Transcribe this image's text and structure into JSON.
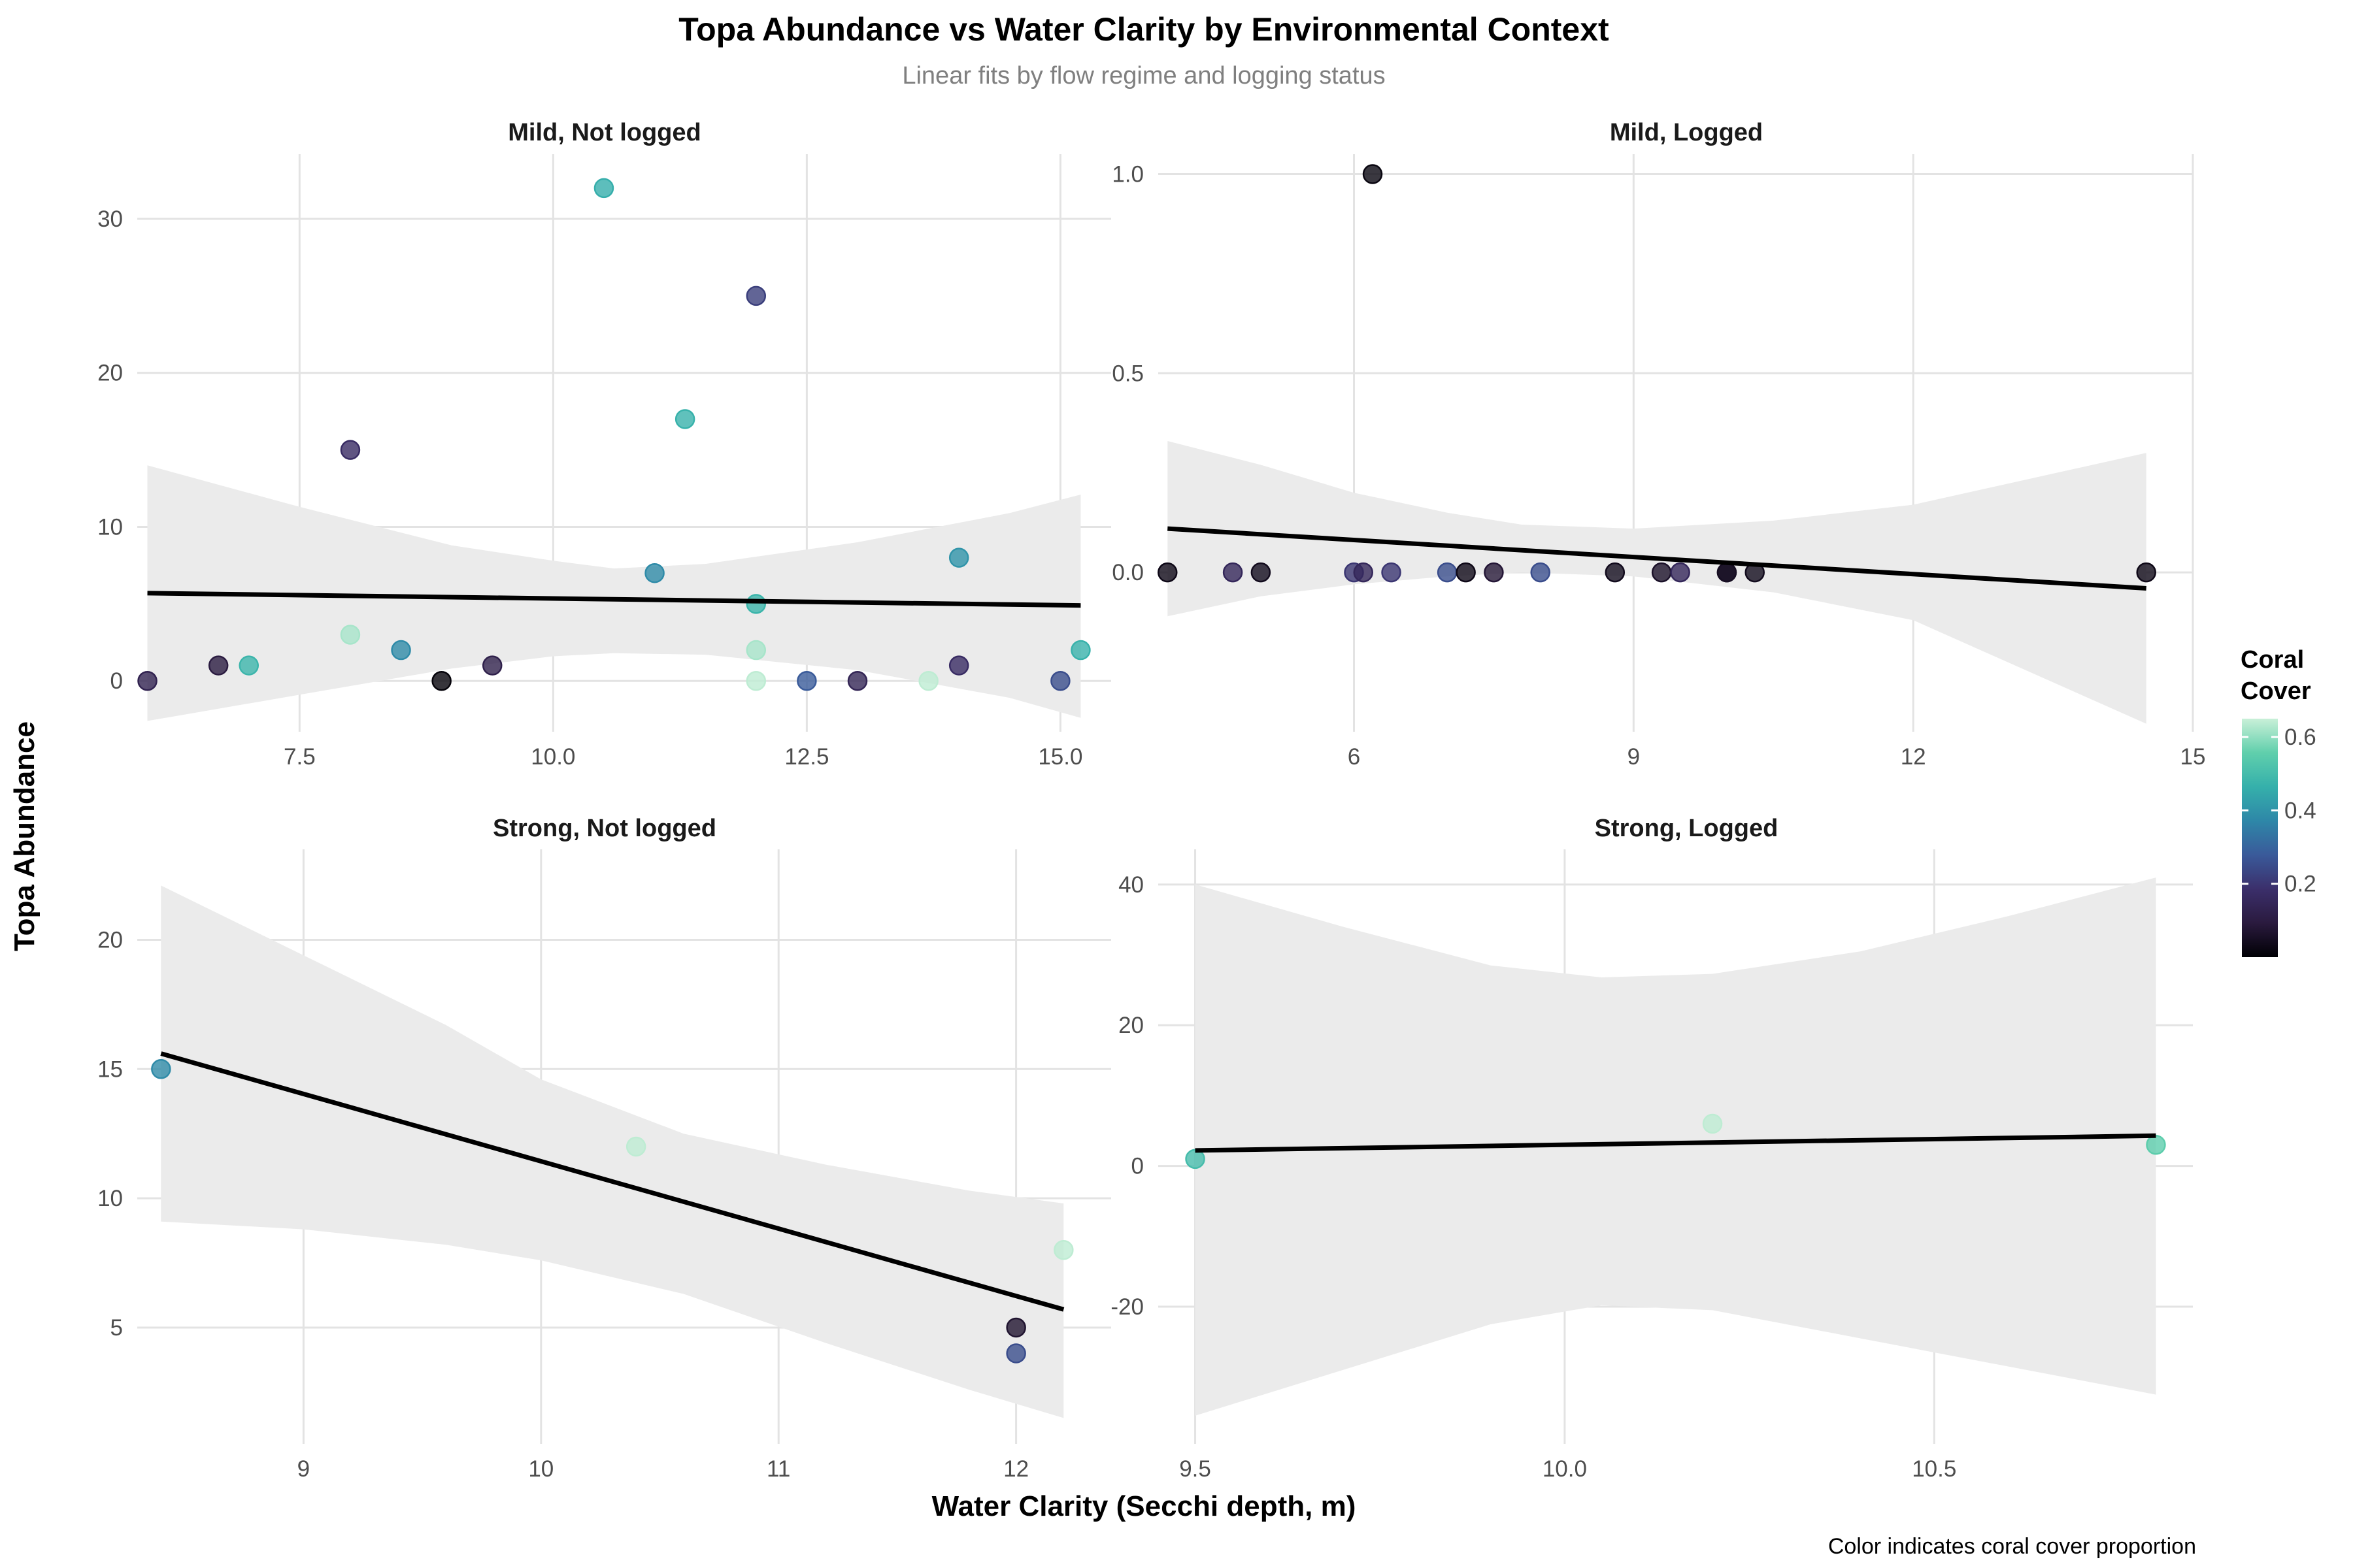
{
  "title": "Topa Abundance vs Water Clarity by Environmental Context",
  "subtitle": "Linear fits by flow regime and logging status",
  "xlabel": "Water Clarity (Secchi depth, m)",
  "ylabel": "Topa Abundance",
  "caption": "Color indicates coral cover proportion",
  "legend": {
    "title_line1": "Coral",
    "title_line2": "Cover",
    "ticks": [
      "0.2",
      "0.4",
      "0.6"
    ],
    "tick_values": [
      0.2,
      0.4,
      0.6
    ],
    "range": [
      0.0,
      0.65
    ],
    "colors": [
      "#000004",
      "#2a1a3e",
      "#3b2f6b",
      "#3a5a9a",
      "#2e87a8",
      "#35b0ab",
      "#60cfac",
      "#c9f0d8"
    ]
  },
  "chart_data": [
    {
      "type": "scatter",
      "title": "Mild, Not logged",
      "xlim": [
        5.9,
        15.5
      ],
      "ylim": [
        -3.3,
        34.2
      ],
      "xticks": [
        7.5,
        10.0,
        12.5,
        15.0
      ],
      "xtick_labels": [
        "7.5",
        "10.0",
        "12.5",
        "15.0"
      ],
      "yticks": [
        0,
        10,
        20,
        30
      ],
      "ytick_labels": [
        "0",
        "10",
        "20",
        "30"
      ],
      "points": [
        {
          "x": 6.0,
          "y": 0,
          "c": 0.13
        },
        {
          "x": 6.7,
          "y": 1,
          "c": 0.1
        },
        {
          "x": 7.0,
          "y": 1,
          "c": 0.48
        },
        {
          "x": 8.0,
          "y": 15,
          "c": 0.17
        },
        {
          "x": 8.0,
          "y": 3,
          "c": 0.62
        },
        {
          "x": 8.5,
          "y": 2,
          "c": 0.38
        },
        {
          "x": 8.9,
          "y": 0,
          "c": 0.01
        },
        {
          "x": 9.4,
          "y": 1,
          "c": 0.12
        },
        {
          "x": 10.5,
          "y": 32,
          "c": 0.46
        },
        {
          "x": 11.0,
          "y": 7,
          "c": 0.38
        },
        {
          "x": 11.3,
          "y": 17,
          "c": 0.47
        },
        {
          "x": 12.0,
          "y": 25,
          "c": 0.22
        },
        {
          "x": 12.0,
          "y": 5,
          "c": 0.48
        },
        {
          "x": 12.0,
          "y": 2,
          "c": 0.62
        },
        {
          "x": 12.0,
          "y": 0,
          "c": 0.64
        },
        {
          "x": 12.5,
          "y": 0,
          "c": 0.28
        },
        {
          "x": 13.0,
          "y": 0,
          "c": 0.14
        },
        {
          "x": 13.7,
          "y": 0,
          "c": 0.64
        },
        {
          "x": 14.0,
          "y": 8,
          "c": 0.4
        },
        {
          "x": 14.0,
          "y": 1,
          "c": 0.17
        },
        {
          "x": 15.0,
          "y": 0,
          "c": 0.25
        },
        {
          "x": 15.2,
          "y": 2,
          "c": 0.47
        }
      ],
      "fit": {
        "x": [
          6.0,
          15.2
        ],
        "y": [
          5.7,
          4.9
        ]
      },
      "band": {
        "x": [
          6.0,
          7.5,
          9.0,
          10.0,
          10.6,
          11.5,
          13.0,
          14.5,
          15.2
        ],
        "lower": [
          -2.6,
          -0.9,
          0.8,
          1.6,
          1.8,
          1.7,
          0.7,
          -1.1,
          -2.4
        ],
        "upper": [
          14.0,
          11.3,
          8.8,
          7.8,
          7.3,
          7.6,
          9.0,
          10.9,
          12.1
        ]
      }
    },
    {
      "type": "scatter",
      "title": "Mild, Logged",
      "xlim": [
        3.9,
        15.0
      ],
      "ylim": [
        -0.4,
        1.05
      ],
      "xticks": [
        6,
        9,
        12,
        15
      ],
      "xtick_labels": [
        "6",
        "9",
        "12",
        "15"
      ],
      "yticks": [
        0.0,
        0.5,
        1.0
      ],
      "ytick_labels": [
        "0.0",
        "0.5",
        "1.0"
      ],
      "points": [
        {
          "x": 4.0,
          "y": 0,
          "c": 0.03
        },
        {
          "x": 4.7,
          "y": 0,
          "c": 0.15
        },
        {
          "x": 5.0,
          "y": 0,
          "c": 0.04
        },
        {
          "x": 6.0,
          "y": 0,
          "c": 0.2
        },
        {
          "x": 6.1,
          "y": 0,
          "c": 0.15
        },
        {
          "x": 6.2,
          "y": 1,
          "c": 0.02
        },
        {
          "x": 6.4,
          "y": 0,
          "c": 0.2
        },
        {
          "x": 7.0,
          "y": 0,
          "c": 0.25
        },
        {
          "x": 7.2,
          "y": 0,
          "c": 0.03
        },
        {
          "x": 7.5,
          "y": 0,
          "c": 0.08
        },
        {
          "x": 8.0,
          "y": 0,
          "c": 0.25
        },
        {
          "x": 8.8,
          "y": 0,
          "c": 0.04
        },
        {
          "x": 9.3,
          "y": 0,
          "c": 0.06
        },
        {
          "x": 9.5,
          "y": 0,
          "c": 0.15
        },
        {
          "x": 10.0,
          "y": 0,
          "c": 0.03
        },
        {
          "x": 10.0,
          "y": 0,
          "c": 0.05
        },
        {
          "x": 10.3,
          "y": 0,
          "c": 0.04
        },
        {
          "x": 14.5,
          "y": 0,
          "c": 0.03
        }
      ],
      "fit": {
        "x": [
          4.0,
          14.5
        ],
        "y": [
          0.11,
          -0.04
        ]
      },
      "band": {
        "x": [
          4.0,
          5.0,
          6.0,
          7.0,
          7.8,
          9.0,
          10.5,
          12.0,
          14.5
        ],
        "lower": [
          -0.11,
          -0.06,
          -0.03,
          -0.01,
          0.0,
          -0.01,
          -0.05,
          -0.12,
          -0.38
        ],
        "upper": [
          0.33,
          0.27,
          0.2,
          0.15,
          0.12,
          0.11,
          0.13,
          0.17,
          0.3
        ]
      }
    },
    {
      "type": "scatter",
      "title": "Strong, Not logged",
      "xlim": [
        8.3,
        12.4
      ],
      "ylim": [
        0.5,
        23.5
      ],
      "xticks": [
        9,
        10,
        11,
        12
      ],
      "xtick_labels": [
        "9",
        "10",
        "11",
        "12"
      ],
      "yticks": [
        5,
        10,
        15,
        20
      ],
      "ytick_labels": [
        "5",
        "10",
        "15",
        "20"
      ],
      "points": [
        {
          "x": 8.4,
          "y": 15,
          "c": 0.38
        },
        {
          "x": 10.4,
          "y": 12,
          "c": 0.64
        },
        {
          "x": 12.0,
          "y": 5,
          "c": 0.07
        },
        {
          "x": 12.0,
          "y": 4,
          "c": 0.25
        },
        {
          "x": 12.2,
          "y": 8,
          "c": 0.64
        }
      ],
      "fit": {
        "x": [
          8.4,
          12.2
        ],
        "y": [
          15.6,
          5.7
        ]
      },
      "band": {
        "x": [
          8.4,
          9.0,
          9.6,
          10.0,
          10.6,
          11.2,
          11.8,
          12.2
        ],
        "lower": [
          9.1,
          8.8,
          8.2,
          7.6,
          6.3,
          4.4,
          2.6,
          1.5
        ],
        "upper": [
          22.1,
          19.4,
          16.7,
          14.6,
          12.5,
          11.3,
          10.3,
          9.8
        ]
      }
    },
    {
      "type": "scatter",
      "title": "Strong, Logged",
      "xlim": [
        9.45,
        10.85
      ],
      "ylim": [
        -39.5,
        45.0
      ],
      "xticks": [
        9.5,
        10.0,
        10.5
      ],
      "xtick_labels": [
        "9.5",
        "10.0",
        "10.5"
      ],
      "yticks": [
        -20,
        0,
        20,
        40
      ],
      "ytick_labels": [
        "-20",
        "0",
        "20",
        "40"
      ],
      "points": [
        {
          "x": 9.5,
          "y": 1,
          "c": 0.5
        },
        {
          "x": 10.2,
          "y": 6,
          "c": 0.64
        },
        {
          "x": 10.8,
          "y": 3,
          "c": 0.55
        }
      ],
      "fit": {
        "x": [
          9.5,
          10.8
        ],
        "y": [
          2.2,
          4.3
        ]
      },
      "band": {
        "x": [
          9.5,
          9.7,
          9.9,
          10.05,
          10.2,
          10.4,
          10.6,
          10.8
        ],
        "lower": [
          -35.5,
          -29.0,
          -22.5,
          -19.8,
          -20.5,
          -24.5,
          -28.5,
          -32.5
        ],
        "upper": [
          40.0,
          34.0,
          28.5,
          26.8,
          27.3,
          30.5,
          35.5,
          41.0
        ]
      }
    }
  ]
}
